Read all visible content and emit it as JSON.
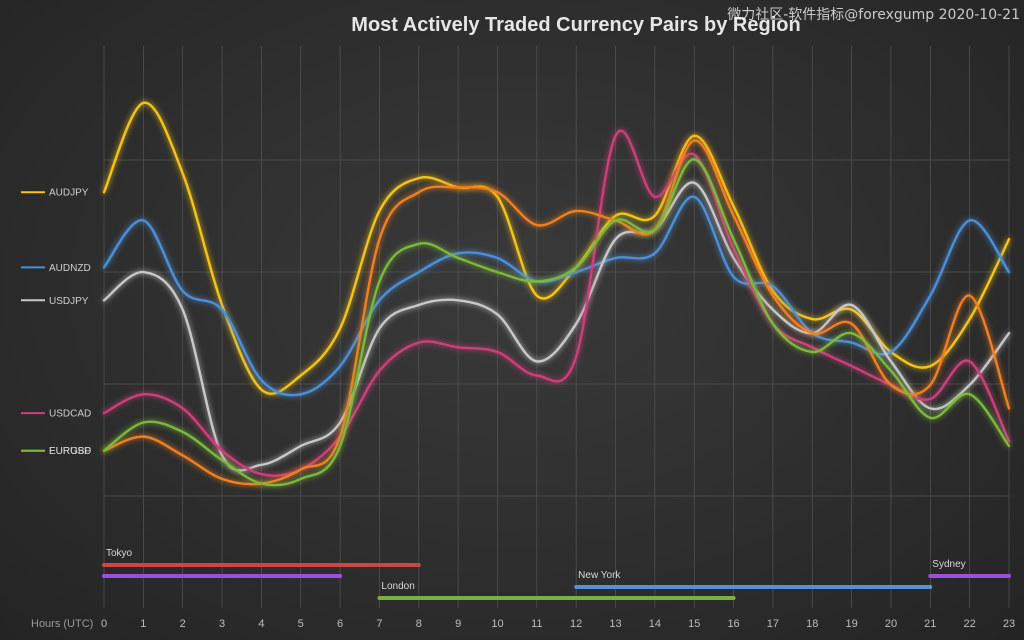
{
  "watermark": "微力社区-软件指标@forexgump 2020-10-21",
  "chart_data": {
    "type": "line",
    "title": "Most Actively Traded Currency Pairs by Region",
    "xlabel": "Hours (UTC)",
    "ylabel": "",
    "x": [
      0,
      1,
      2,
      3,
      4,
      5,
      6,
      7,
      8,
      9,
      10,
      11,
      12,
      13,
      14,
      15,
      16,
      17,
      18,
      19,
      20,
      21,
      22,
      23
    ],
    "xlim": [
      0,
      23
    ],
    "ylim": [
      0,
      100
    ],
    "grid": true,
    "legend": "left",
    "series": [
      {
        "name": "AUDJPY",
        "color": "#f5c518",
        "values": [
          74,
          93,
          78,
          50,
          32,
          35,
          45,
          70,
          77,
          75,
          73,
          52,
          58,
          69,
          69,
          86,
          71,
          53,
          47,
          49,
          40,
          37,
          47,
          64
        ]
      },
      {
        "name": "AUDNZD",
        "color": "#4d8fd6",
        "values": [
          58,
          68,
          53,
          49,
          34,
          31,
          37,
          51,
          57,
          61,
          60,
          55,
          57,
          60,
          61,
          73,
          56,
          54,
          44,
          42,
          40,
          52,
          68,
          57
        ]
      },
      {
        "name": "USDJPY",
        "color": "#c8c8c8",
        "values": [
          51,
          57,
          49,
          18,
          16,
          20,
          25,
          45,
          50,
          51,
          48,
          38,
          46,
          64,
          66,
          76,
          60,
          49,
          44,
          50,
          38,
          28,
          33,
          44
        ]
      },
      {
        "name": "USDCAD",
        "color": "#cc3f7a",
        "values": [
          27,
          31,
          28,
          19,
          14,
          15,
          22,
          36,
          42,
          41,
          40,
          35,
          39,
          86,
          73,
          82,
          62,
          46,
          41,
          37,
          33,
          30,
          38,
          21
        ]
      },
      {
        "name": "EURGBP",
        "color": "#f07f22",
        "values": [
          19,
          22,
          18,
          13,
          12,
          15,
          22,
          64,
          74,
          75,
          74,
          67,
          70,
          68,
          66,
          85,
          69,
          52,
          44,
          46,
          33,
          33,
          52,
          28
        ]
      },
      {
        "name": "EURUSD",
        "color": "#7bb83a",
        "values": [
          19,
          25,
          23,
          17,
          12,
          13,
          20,
          55,
          63,
          60,
          57,
          55,
          58,
          68,
          66,
          81,
          64,
          46,
          40,
          44,
          36,
          26,
          31,
          20
        ]
      }
    ],
    "sessions": [
      {
        "name": "Tokyo",
        "label": "Tokyo",
        "color": "#cf4444",
        "start": 0,
        "end": 8
      },
      {
        "name": "Sydney-early",
        "label": "",
        "color": "#9b4fe0",
        "start": 0,
        "end": 6
      },
      {
        "name": "London",
        "label": "London",
        "color": "#7ab03c",
        "start": 7,
        "end": 16
      },
      {
        "name": "New York",
        "label": "New York",
        "color": "#5b8fd4",
        "start": 12,
        "end": 21
      },
      {
        "name": "Sydney",
        "label": "Sydney",
        "color": "#9b4fe0",
        "start": 21,
        "end": 23
      }
    ]
  }
}
